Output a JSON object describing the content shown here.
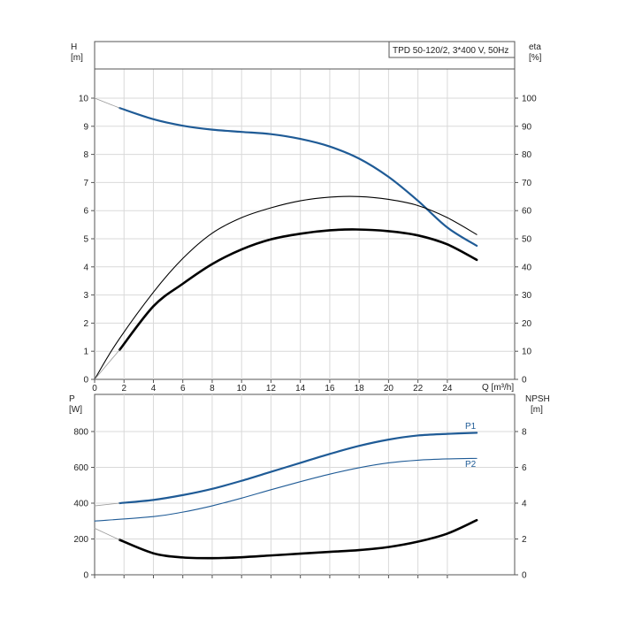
{
  "chart_data": [
    {
      "type": "line",
      "title": "TPD 50-120/2, 3*400 V, 50Hz",
      "ylabel": "H",
      "ylabel_unit": "[m]",
      "y2label": "eta",
      "y2label_unit": "[%]",
      "xlabel": "Q [m³/h]",
      "xlim": [
        0,
        28
      ],
      "xticks": [
        0,
        2,
        4,
        6,
        8,
        10,
        12,
        14,
        16,
        18,
        20,
        22,
        24
      ],
      "ylim": [
        0,
        11
      ],
      "yticks": [
        0,
        1,
        2,
        3,
        4,
        5,
        6,
        7,
        8,
        9,
        10
      ],
      "y2lim": [
        0,
        110
      ],
      "y2ticks": [
        0,
        10,
        20,
        30,
        40,
        50,
        60,
        70,
        80,
        90,
        100
      ],
      "grid": true,
      "series": [
        {
          "axis": "left",
          "color": "#1f5b96",
          "x": [
            1.7,
            4,
            6,
            8,
            10,
            12,
            14,
            16,
            18,
            20,
            22,
            24,
            26
          ],
          "values": [
            9.65,
            9.25,
            9.02,
            8.88,
            8.8,
            8.72,
            8.55,
            8.28,
            7.85,
            7.2,
            6.35,
            5.4,
            4.75
          ]
        },
        {
          "axis": "left",
          "color": "#999999",
          "x": [
            0,
            1.7
          ],
          "values": [
            10.0,
            9.65
          ]
        },
        {
          "axis": "right",
          "color": "#000000",
          "x": [
            0,
            1.5,
            4,
            6,
            8,
            10,
            12,
            14,
            16,
            18,
            20,
            22,
            24,
            26
          ],
          "values": [
            0,
            13,
            31,
            43,
            52,
            57.5,
            61,
            63.5,
            64.8,
            65,
            64,
            61.8,
            57.5,
            51.5
          ]
        },
        {
          "axis": "left",
          "color": "#000000",
          "x": [
            1.7,
            4,
            6,
            8,
            10,
            12,
            14,
            16,
            17.8,
            20,
            22,
            24,
            26
          ],
          "values": [
            1.05,
            2.6,
            3.4,
            4.1,
            4.62,
            4.98,
            5.18,
            5.3,
            5.33,
            5.27,
            5.12,
            4.8,
            4.25
          ]
        },
        {
          "axis": "left",
          "color": "#999999",
          "x": [
            0,
            1.7
          ],
          "values": [
            0,
            1.05
          ]
        }
      ]
    },
    {
      "type": "line",
      "ylabel": "P",
      "ylabel_unit": "[W]",
      "y2label": "NPSH",
      "y2label_unit": "[m]",
      "xlim": [
        0,
        28
      ],
      "ylim": [
        0,
        900
      ],
      "yticks": [
        0,
        200,
        400,
        600,
        800
      ],
      "y2lim": [
        0,
        9
      ],
      "y2ticks": [
        0,
        2,
        4,
        6,
        8
      ],
      "grid": true,
      "series": [
        {
          "name": "P1",
          "axis": "left",
          "color": "#1f5b96",
          "x": [
            1.7,
            4,
            6,
            8,
            10,
            12,
            14,
            16,
            18,
            20,
            22,
            24,
            26
          ],
          "values": [
            400,
            418,
            445,
            480,
            525,
            575,
            625,
            675,
            720,
            755,
            778,
            787,
            793
          ]
        },
        {
          "name": "P2",
          "axis": "left",
          "color": "#1f5b96",
          "x": [
            0,
            4,
            6,
            8,
            10,
            12,
            14,
            16,
            18,
            20,
            22,
            24,
            26
          ],
          "values": [
            300,
            325,
            350,
            385,
            428,
            475,
            520,
            562,
            598,
            625,
            640,
            647,
            650
          ]
        },
        {
          "axis": "left",
          "color": "#999999",
          "x": [
            0,
            1.7
          ],
          "values": [
            385,
            400
          ]
        },
        {
          "axis": "right",
          "color": "#000000",
          "x": [
            1.7,
            4,
            6,
            8,
            10,
            12,
            14,
            16,
            18,
            20,
            22,
            24,
            26
          ],
          "values": [
            1.95,
            1.2,
            0.97,
            0.93,
            0.98,
            1.08,
            1.18,
            1.28,
            1.38,
            1.55,
            1.85,
            2.3,
            3.05
          ]
        },
        {
          "axis": "right",
          "color": "#999999",
          "x": [
            0,
            1.7
          ],
          "values": [
            2.6,
            1.95
          ]
        }
      ]
    }
  ]
}
